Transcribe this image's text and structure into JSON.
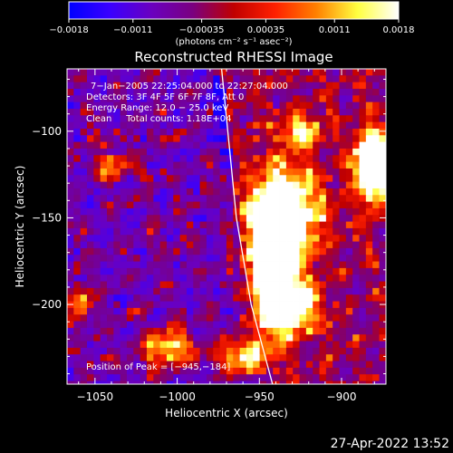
{
  "chart_data": {
    "type": "heatmap",
    "title": "Reconstructed RHESSI Image",
    "xlabel": "Heliocentric X (arcsec)",
    "ylabel": "Heliocentric Y (arcsec)",
    "xlim": [
      -1067,
      -873
    ],
    "ylim": [
      -246,
      -64
    ],
    "x_ticks": [
      -1050,
      -1000,
      -950,
      -900
    ],
    "x_tick_labels": [
      "−1050",
      "−1000",
      "−950",
      "−900"
    ],
    "y_ticks": [
      -100,
      -150,
      -200
    ],
    "y_tick_labels": [
      "−100",
      "−150",
      "−200"
    ],
    "colorbar": {
      "min": -0.0018,
      "max": 0.0018,
      "ticks": [
        -0.0018,
        -0.0011,
        -0.00035,
        0.00035,
        0.0011,
        0.0018
      ],
      "tick_labels": [
        "−0.0018",
        "−0.0011",
        "−0.00035",
        "0.00035",
        "0.0011",
        "0.0018"
      ],
      "unit_label": "(photons cm⁻² s⁻¹ asec⁻²)",
      "colormap": [
        "#0000ff",
        "#3a00ff",
        "#6a00c0",
        "#7a0080",
        "#c00000",
        "#ff2000",
        "#ff8000",
        "#ffff40",
        "#ffffff"
      ]
    },
    "annotations": [
      "7−Jan−2005 22:25:04.000 to 22:27:04.000",
      "Detectors: 3F 4F 5F 6F 7F 8F, Att 0",
      "Energy Range: 12.0 − 25.0 keV",
      "Clean     Total counts: 1.18E+04",
      "Position of Peak = [−945,−184]"
    ],
    "peak": {
      "x": -945,
      "y": -184
    },
    "limb_line": [
      [
        -973,
        -64
      ],
      [
        -964,
        -150
      ],
      [
        -955,
        -200
      ],
      [
        -942,
        -246
      ]
    ],
    "bright_sources": [
      {
        "x": -942,
        "y": -180,
        "sx": 8,
        "sy": 22,
        "amp": 1.35
      },
      {
        "x": -935,
        "y": -148,
        "sx": 14,
        "sy": 18,
        "amp": 1.0
      },
      {
        "x": -928,
        "y": -200,
        "sx": 10,
        "sy": 10,
        "amp": 0.8
      },
      {
        "x": -880,
        "y": -120,
        "sx": 8,
        "sy": 14,
        "amp": 1.15
      },
      {
        "x": -925,
        "y": -100,
        "sx": 8,
        "sy": 6,
        "amp": 0.6
      },
      {
        "x": -1040,
        "y": -120,
        "sx": 8,
        "sy": 5,
        "amp": 0.45
      },
      {
        "x": -1005,
        "y": -225,
        "sx": 12,
        "sy": 8,
        "amp": 0.55
      },
      {
        "x": -1058,
        "y": -200,
        "sx": 5,
        "sy": 7,
        "amp": 0.5
      },
      {
        "x": -960,
        "y": -230,
        "sx": 10,
        "sy": 7,
        "amp": 0.7
      }
    ]
  },
  "footer": {
    "timestamp": "27-Apr-2022 13:52"
  }
}
